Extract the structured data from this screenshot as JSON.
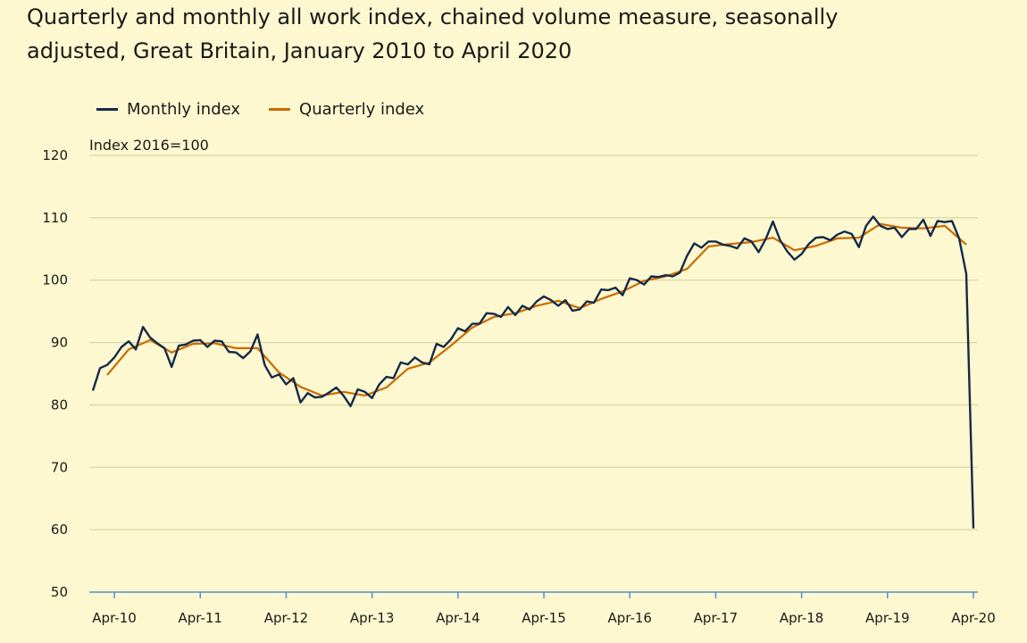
{
  "header": {
    "title_line1": "Quarterly and monthly all work index, chained volume measure, seasonally",
    "title_line2": "adjusted, Great Britain, January 2010 to April 2020"
  },
  "chart_data": {
    "type": "line",
    "title": "Quarterly and monthly all work index, chained volume measure, seasonally adjusted, Great Britain, January 2010 to April 2020",
    "ylabel": "Index 2016=100",
    "ylim": [
      50,
      120
    ],
    "yticks": [
      50,
      60,
      70,
      80,
      90,
      100,
      110,
      120
    ],
    "x_tick_labels": [
      "Apr-10",
      "Apr-11",
      "Apr-12",
      "Apr-13",
      "Apr-14",
      "Apr-15",
      "Apr-16",
      "Apr-17",
      "Apr-18",
      "Apr-19",
      "Apr-20"
    ],
    "x_tick_month_index": [
      3,
      15,
      27,
      39,
      51,
      63,
      75,
      87,
      99,
      111,
      123
    ],
    "x_range_months": [
      0,
      123
    ],
    "grid": "horizontal",
    "legend_position": "top-left",
    "colors": {
      "monthly": "#152a4a",
      "quarterly": "#cc6a00",
      "grid": "#cfcf9a",
      "axis": "#5a8cc8"
    },
    "series": [
      {
        "name": "Monthly index",
        "key": "monthly",
        "start_month": "Jan-10",
        "values": [
          82.3,
          85.9,
          86.4,
          87.6,
          89.3,
          90.2,
          88.9,
          92.5,
          90.8,
          89.9,
          89.1,
          86.1,
          89.5,
          89.7,
          90.3,
          90.4,
          89.3,
          90.3,
          90.2,
          88.5,
          88.4,
          87.5,
          88.6,
          91.3,
          86.4,
          84.4,
          84.9,
          83.3,
          84.3,
          80.4,
          81.9,
          81.2,
          81.3,
          82.0,
          82.8,
          81.5,
          79.8,
          82.5,
          82.1,
          81.1,
          83.3,
          84.5,
          84.3,
          86.8,
          86.5,
          87.6,
          86.8,
          86.5,
          89.8,
          89.3,
          90.5,
          92.3,
          91.8,
          93.0,
          93.0,
          94.7,
          94.6,
          94.1,
          95.7,
          94.4,
          95.9,
          95.3,
          96.6,
          97.4,
          96.8,
          95.9,
          96.8,
          95.1,
          95.3,
          96.6,
          96.4,
          98.5,
          98.4,
          98.8,
          97.6,
          100.3,
          100.0,
          99.3,
          100.6,
          100.5,
          100.8,
          100.6,
          101.2,
          103.9,
          105.9,
          105.2,
          106.2,
          106.2,
          105.7,
          105.5,
          105.1,
          106.7,
          106.2,
          104.5,
          106.6,
          109.4,
          106.4,
          104.6,
          103.3,
          104.2,
          105.8,
          106.8,
          106.9,
          106.4,
          107.3,
          107.8,
          107.4,
          105.3,
          108.7,
          110.2,
          108.7,
          108.2,
          108.4,
          106.9,
          108.2,
          108.2,
          109.7,
          107.1,
          109.5,
          109.3,
          109.5,
          106.7,
          101.0,
          60.2
        ]
      },
      {
        "name": "Quarterly index",
        "key": "quarterly",
        "points": [
          [
            2,
            84.8
          ],
          [
            5,
            88.9
          ],
          [
            8,
            90.4
          ],
          [
            11,
            88.4
          ],
          [
            14,
            89.8
          ],
          [
            17,
            89.9
          ],
          [
            20,
            89.1
          ],
          [
            23,
            89.1
          ],
          [
            26,
            85.2
          ],
          [
            29,
            82.9
          ],
          [
            32,
            81.5
          ],
          [
            35,
            82.1
          ],
          [
            38,
            81.5
          ],
          [
            41,
            82.8
          ],
          [
            44,
            85.8
          ],
          [
            47,
            86.8
          ],
          [
            50,
            89.5
          ],
          [
            53,
            92.4
          ],
          [
            56,
            94.1
          ],
          [
            59,
            94.7
          ],
          [
            62,
            95.9
          ],
          [
            65,
            96.7
          ],
          [
            68,
            95.5
          ],
          [
            71,
            97.0
          ],
          [
            74,
            98.2
          ],
          [
            77,
            99.9
          ],
          [
            80,
            100.6
          ],
          [
            83,
            101.8
          ],
          [
            86,
            105.4
          ],
          [
            89,
            105.8
          ],
          [
            92,
            106.1
          ],
          [
            95,
            106.8
          ],
          [
            98,
            104.8
          ],
          [
            101,
            105.5
          ],
          [
            104,
            106.7
          ],
          [
            107,
            106.8
          ],
          [
            110,
            109.0
          ],
          [
            113,
            108.4
          ],
          [
            116,
            108.3
          ],
          [
            119,
            108.7
          ],
          [
            122,
            105.7
          ]
        ]
      }
    ]
  }
}
